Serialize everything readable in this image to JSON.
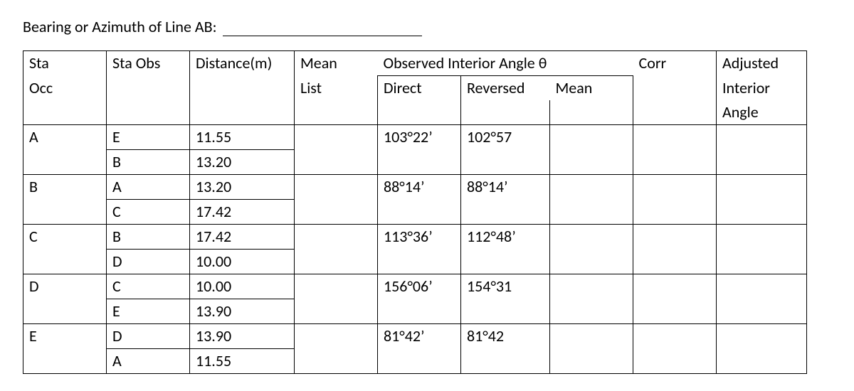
{
  "title": "Bearing or Azimuth of Line AB: ",
  "headers": {
    "sta_occ_line1": "Sta",
    "sta_occ_line2": "Occ",
    "sta_obs": "Sta Obs",
    "distance": "Distance(m)",
    "mean_list_line1": "Mean",
    "mean_list_line2": "List",
    "observed_group": "Observed Interior Angle θ",
    "direct": "Direct",
    "reversed": "Reversed",
    "obs_mean": "Mean",
    "corr": "Corr",
    "adjusted_line1": "Adjusted",
    "adjusted_line2": "Interior",
    "adjusted_line3": "Angle"
  },
  "rows": [
    {
      "sta_occ": "A",
      "sta_obs": "E",
      "distance": "11.55",
      "direct": "103°22’",
      "reversed": "102°57"
    },
    {
      "sta_occ": "",
      "sta_obs": "B",
      "distance": "13.20",
      "direct": "",
      "reversed": ""
    },
    {
      "sta_occ": "B",
      "sta_obs": "A",
      "distance": "13.20",
      "direct": "88°14’",
      "reversed": "88°14’"
    },
    {
      "sta_occ": "",
      "sta_obs": "C",
      "distance": "17.42",
      "direct": "",
      "reversed": ""
    },
    {
      "sta_occ": "C",
      "sta_obs": "B",
      "distance": "17.42",
      "direct": "113°36’",
      "reversed": "112°48’"
    },
    {
      "sta_occ": "",
      "sta_obs": "D",
      "distance": "10.00",
      "direct": "",
      "reversed": ""
    },
    {
      "sta_occ": "D",
      "sta_obs": "C",
      "distance": "10.00",
      "direct": "156°06’",
      "reversed": "154°31"
    },
    {
      "sta_occ": "",
      "sta_obs": "E",
      "distance": "13.90",
      "direct": "",
      "reversed": ""
    },
    {
      "sta_occ": "E",
      "sta_obs": "D",
      "distance": "13.90",
      "direct": "81°42’",
      "reversed": "81°42"
    },
    {
      "sta_occ": "",
      "sta_obs": "A",
      "distance": "11.55",
      "direct": "",
      "reversed": ""
    }
  ]
}
